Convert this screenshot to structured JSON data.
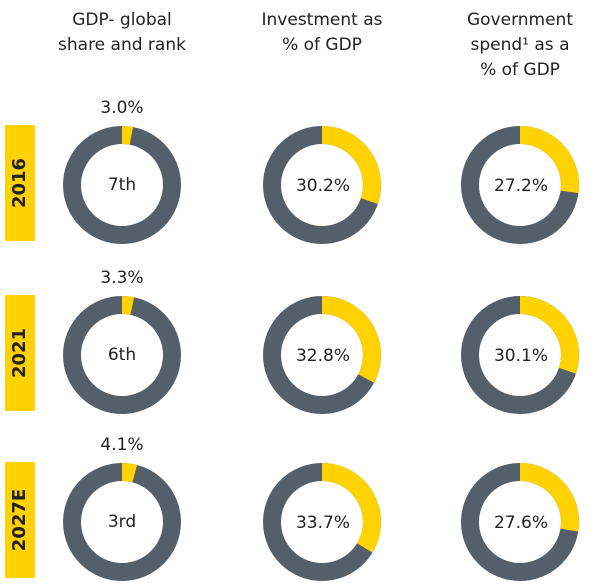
{
  "chart_data": {
    "type": "donut",
    "columns": [
      [
        "GDP- global",
        "share and rank"
      ],
      [
        "Investment as",
        "% of GDP"
      ],
      [
        "Government",
        "spend¹ as a",
        "% of GDP"
      ]
    ],
    "rows": [
      {
        "label": "2016",
        "rank": "7th",
        "values": [
          3.0,
          30.2,
          27.2
        ],
        "value_labels": [
          "3.0%",
          "30.2%",
          "27.2%"
        ]
      },
      {
        "label": "2021",
        "rank": "6th",
        "values": [
          3.3,
          32.8,
          30.1
        ],
        "value_labels": [
          "3.3%",
          "32.8%",
          "30.1%"
        ]
      },
      {
        "label": "2027E",
        "rank": "3rd",
        "values": [
          4.1,
          33.7,
          27.6
        ],
        "value_labels": [
          "4.1%",
          "33.7%",
          "27.6%"
        ]
      }
    ],
    "color": "#ffd200",
    "rest_color": "#555f69"
  }
}
